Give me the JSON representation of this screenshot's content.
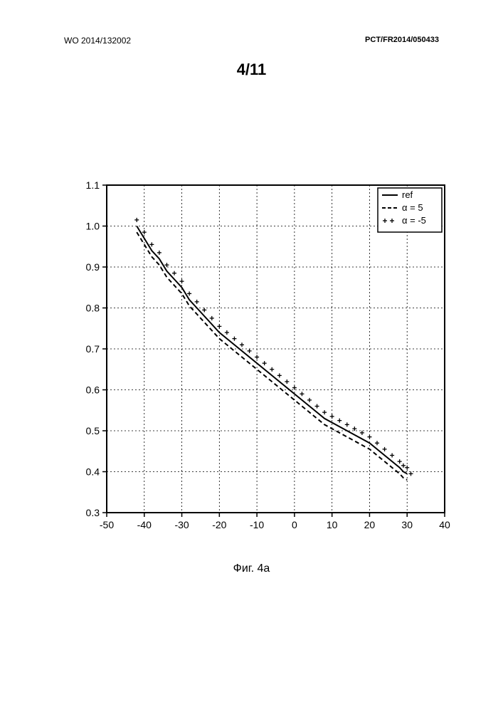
{
  "header": {
    "left": "WO 2014/132002",
    "right": "PCT/FR2014/050433"
  },
  "pageNumber": "4/11",
  "caption": "Фиг. 4a",
  "chart": {
    "type": "line",
    "xlim": [
      -50,
      40
    ],
    "ylim": [
      0.3,
      1.1
    ],
    "xtick_step": 10,
    "ytick_step": 0.1,
    "xticks": [
      -50,
      -40,
      -30,
      -20,
      -10,
      0,
      10,
      20,
      30,
      40
    ],
    "yticks": [
      0.3,
      0.4,
      0.5,
      0.6,
      0.7,
      0.8,
      0.9,
      1.0,
      1.1
    ],
    "background_color": "#ffffff",
    "grid_color": "#000000",
    "grid_dash": "2,3",
    "axis_color": "#000000",
    "tick_fontsize": 14,
    "legend": {
      "position": "top-right",
      "border_color": "#000000",
      "background": "#ffffff",
      "fontsize": 13,
      "items": [
        {
          "label": "ref",
          "style": "solid",
          "marker": "none",
          "color": "#000000"
        },
        {
          "label": "α = 5",
          "style": "dash",
          "marker": "none",
          "color": "#000000"
        },
        {
          "label": "α = -5",
          "style": "none",
          "marker": "plus",
          "color": "#000000"
        }
      ]
    },
    "series": [
      {
        "name": "ref",
        "style": "solid",
        "line_width": 2,
        "color": "#000000",
        "x": [
          -42,
          -40,
          -38,
          -36,
          -34,
          -32,
          -30,
          -28,
          -26,
          -24,
          -22,
          -20,
          -18,
          -16,
          -14,
          -12,
          -10,
          -8,
          -6,
          -4,
          -2,
          0,
          2,
          4,
          6,
          8,
          10,
          12,
          14,
          16,
          18,
          20,
          22,
          24,
          26,
          28,
          29,
          30
        ],
        "y": [
          1.0,
          0.97,
          0.94,
          0.92,
          0.89,
          0.87,
          0.85,
          0.82,
          0.8,
          0.78,
          0.76,
          0.74,
          0.725,
          0.71,
          0.695,
          0.68,
          0.665,
          0.65,
          0.635,
          0.62,
          0.605,
          0.59,
          0.575,
          0.56,
          0.545,
          0.53,
          0.52,
          0.51,
          0.5,
          0.49,
          0.48,
          0.47,
          0.455,
          0.44,
          0.425,
          0.41,
          0.4,
          0.395
        ]
      },
      {
        "name": "alpha5",
        "style": "dash",
        "dash_pattern": "6,4",
        "line_width": 2,
        "color": "#000000",
        "x": [
          -42,
          -40,
          -38,
          -36,
          -34,
          -32,
          -30,
          -28,
          -26,
          -24,
          -22,
          -20,
          -18,
          -16,
          -14,
          -12,
          -10,
          -8,
          -6,
          -4,
          -2,
          0,
          2,
          4,
          6,
          8,
          10,
          12,
          14,
          16,
          18,
          20,
          22,
          24,
          26,
          28,
          29,
          30
        ],
        "y": [
          0.985,
          0.955,
          0.925,
          0.905,
          0.875,
          0.855,
          0.835,
          0.805,
          0.785,
          0.765,
          0.745,
          0.725,
          0.71,
          0.695,
          0.68,
          0.665,
          0.65,
          0.635,
          0.62,
          0.605,
          0.59,
          0.575,
          0.56,
          0.545,
          0.53,
          0.515,
          0.505,
          0.495,
          0.485,
          0.475,
          0.465,
          0.455,
          0.44,
          0.425,
          0.41,
          0.395,
          0.385,
          0.38
        ]
      },
      {
        "name": "alphaM5",
        "style": "marker",
        "marker": "plus",
        "marker_size": 6,
        "color": "#000000",
        "x": [
          -42,
          -40,
          -38,
          -36,
          -34,
          -32,
          -30,
          -28,
          -26,
          -24,
          -22,
          -20,
          -18,
          -16,
          -14,
          -12,
          -10,
          -8,
          -6,
          -4,
          -2,
          0,
          2,
          4,
          6,
          8,
          10,
          12,
          14,
          16,
          18,
          20,
          22,
          24,
          26,
          28,
          29,
          30,
          31
        ],
        "y": [
          1.015,
          0.985,
          0.955,
          0.935,
          0.905,
          0.885,
          0.865,
          0.835,
          0.815,
          0.795,
          0.775,
          0.755,
          0.74,
          0.725,
          0.71,
          0.695,
          0.68,
          0.665,
          0.65,
          0.635,
          0.62,
          0.605,
          0.59,
          0.575,
          0.56,
          0.545,
          0.535,
          0.525,
          0.515,
          0.505,
          0.495,
          0.485,
          0.47,
          0.455,
          0.44,
          0.425,
          0.415,
          0.41,
          0.395
        ]
      }
    ]
  }
}
